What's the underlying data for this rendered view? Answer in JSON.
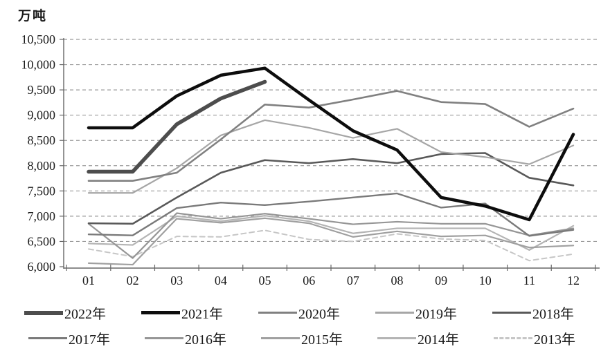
{
  "unit_label": "万吨",
  "y_tick_labels": [
    "10,500",
    "10,000",
    "9,500",
    "9,000",
    "8,500",
    "8,000",
    "7,500",
    "7,000",
    "6,500",
    "6,000"
  ],
  "chart_data": {
    "type": "line",
    "title": "",
    "xlabel": "",
    "ylabel": "万吨",
    "ylim": [
      6000,
      10500
    ],
    "ytick_step": 500,
    "grid": "horizontal-dashed",
    "legend_position": "bottom-two-rows",
    "categories": [
      "01",
      "02",
      "03",
      "04",
      "05",
      "06",
      "07",
      "08",
      "09",
      "10",
      "11",
      "12"
    ],
    "series": [
      {
        "name": "2022年",
        "color": "#4d4d4d",
        "width": 5.5,
        "dash": null,
        "values": [
          7880,
          7880,
          8820,
          9330,
          9660,
          null,
          null,
          null,
          null,
          null,
          null,
          null
        ]
      },
      {
        "name": "2021年",
        "color": "#0d0d0d",
        "width": 4.5,
        "dash": null,
        "values": [
          8750,
          8750,
          9380,
          9790,
          9930,
          9300,
          8690,
          8310,
          7370,
          7200,
          6930,
          8620
        ]
      },
      {
        "name": "2020年",
        "color": "#808080",
        "width": 2.6,
        "dash": null,
        "values": [
          7700,
          7700,
          7860,
          8520,
          9210,
          9150,
          9310,
          9480,
          9260,
          9220,
          8770,
          9130
        ]
      },
      {
        "name": "2019年",
        "color": "#a6a6a6",
        "width": 2.2,
        "dash": null,
        "values": [
          7460,
          7460,
          7950,
          8600,
          8900,
          8750,
          8550,
          8730,
          8270,
          8170,
          8030,
          8400
        ]
      },
      {
        "name": "2018年",
        "color": "#595959",
        "width": 2.6,
        "dash": null,
        "values": [
          6860,
          6850,
          7370,
          7860,
          8110,
          8050,
          8130,
          8050,
          8230,
          8250,
          7760,
          7610
        ]
      },
      {
        "name": "2017年",
        "color": "#7a7a7a",
        "width": 2.4,
        "dash": null,
        "values": [
          6640,
          6620,
          7160,
          7270,
          7220,
          7290,
          7370,
          7450,
          7170,
          7250,
          6610,
          6730
        ]
      },
      {
        "name": "2016年",
        "color": "#969696",
        "width": 2.2,
        "dash": null,
        "values": [
          6850,
          6170,
          7060,
          6950,
          7050,
          6950,
          6840,
          6890,
          6850,
          6850,
          6620,
          6760
        ]
      },
      {
        "name": "2015年",
        "color": "#a0a0a0",
        "width": 2.2,
        "dash": null,
        "values": [
          6070,
          6040,
          6950,
          6870,
          6960,
          6860,
          6590,
          6700,
          6600,
          6620,
          6380,
          6420
        ]
      },
      {
        "name": "2014年",
        "color": "#b4b4b4",
        "width": 2.2,
        "dash": null,
        "values": [
          6460,
          6430,
          7000,
          6900,
          7010,
          6900,
          6660,
          6760,
          6760,
          6760,
          6330,
          6810
        ]
      },
      {
        "name": "2013年",
        "color": "#c6c6c6",
        "width": 2.0,
        "dash": "7,5",
        "values": [
          6350,
          6200,
          6600,
          6590,
          6720,
          6540,
          6500,
          6650,
          6550,
          6520,
          6120,
          6250
        ]
      }
    ]
  }
}
